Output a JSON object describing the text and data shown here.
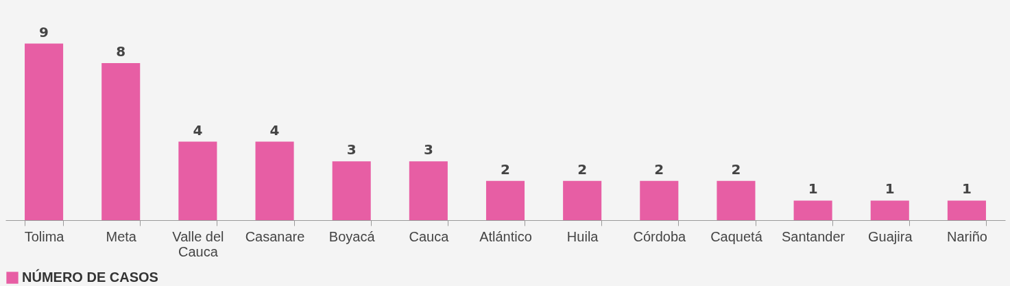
{
  "chart_data": {
    "type": "bar",
    "categories": [
      "Tolima",
      "Meta",
      "Valle del Cauca",
      "Casanare",
      "Boyacá",
      "Cauca",
      "Atlántico",
      "Huila",
      "Córdoba",
      "Caquetá",
      "Santander",
      "Guajira",
      "Nariño"
    ],
    "series": [
      {
        "name": "NÚMERO DE CASOS",
        "color": "#e75ea4",
        "values": [
          9,
          8,
          4,
          4,
          3,
          3,
          2,
          2,
          2,
          2,
          1,
          1,
          1
        ]
      }
    ],
    "data_labels": true,
    "legend": "bottom",
    "grid": false
  }
}
